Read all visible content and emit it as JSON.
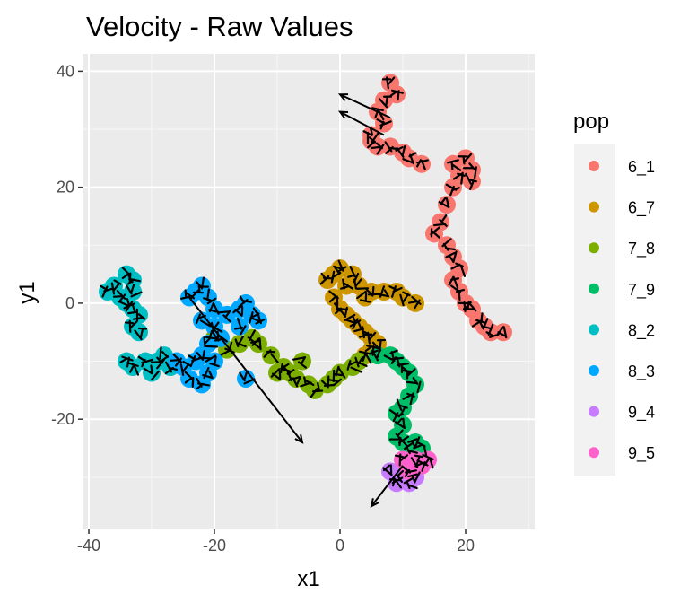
{
  "chart_data": {
    "type": "scatter",
    "title": "Velocity - Raw Values",
    "xlabel": "x1",
    "ylabel": "y1",
    "xlim": [
      -41,
      31
    ],
    "ylim": [
      -39,
      43
    ],
    "xticks": [
      -40,
      -20,
      0,
      20
    ],
    "yticks": [
      -20,
      0,
      20,
      40
    ],
    "grid": true,
    "background": "#EBEBEB",
    "legend": {
      "title": "pop",
      "position": "right",
      "entries": [
        {
          "label": "6_1",
          "color": "#F8766D"
        },
        {
          "label": "6_7",
          "color": "#CD9600"
        },
        {
          "label": "7_8",
          "color": "#7CAE00"
        },
        {
          "label": "7_9",
          "color": "#00BE67"
        },
        {
          "label": "8_2",
          "color": "#00BFC4"
        },
        {
          "label": "8_3",
          "color": "#00A9FF"
        },
        {
          "label": "9_4",
          "color": "#C77CFF"
        },
        {
          "label": "9_5",
          "color": "#FF61CC"
        }
      ]
    },
    "series": [
      {
        "name": "6_1",
        "color": "#F8766D",
        "points": [
          [
            8,
            38
          ],
          [
            7,
            35
          ],
          [
            9,
            36
          ],
          [
            6,
            33
          ],
          [
            7,
            31
          ],
          [
            5,
            29
          ],
          [
            6,
            27
          ],
          [
            5,
            28
          ],
          [
            8,
            27
          ],
          [
            10,
            26
          ],
          [
            11,
            25
          ],
          [
            13,
            24
          ],
          [
            18,
            24
          ],
          [
            20,
            25
          ],
          [
            21,
            23
          ],
          [
            19,
            22
          ],
          [
            21,
            21
          ],
          [
            18,
            20
          ],
          [
            17,
            17
          ],
          [
            16,
            14
          ],
          [
            15,
            12
          ],
          [
            17,
            10
          ],
          [
            18,
            8
          ],
          [
            19,
            6
          ],
          [
            18,
            4
          ],
          [
            19,
            2
          ],
          [
            20,
            0
          ],
          [
            21,
            -1
          ],
          [
            22,
            -3
          ],
          [
            23,
            -4
          ],
          [
            24,
            -5
          ],
          [
            26,
            -5
          ]
        ]
      },
      {
        "name": "6_7",
        "color": "#CD9600",
        "points": [
          [
            -2,
            4
          ],
          [
            -1,
            5
          ],
          [
            0,
            6
          ],
          [
            2,
            5
          ],
          [
            1,
            3
          ],
          [
            3,
            3
          ],
          [
            5,
            2
          ],
          [
            4,
            1
          ],
          [
            7,
            2
          ],
          [
            9,
            2
          ],
          [
            10,
            1
          ],
          [
            12,
            0
          ],
          [
            -1,
            1
          ],
          [
            0,
            -1
          ],
          [
            1,
            -2
          ],
          [
            2,
            -3
          ],
          [
            3,
            -4
          ],
          [
            4,
            -5
          ],
          [
            5,
            -6
          ],
          [
            6,
            -7
          ],
          [
            5,
            -8
          ],
          [
            4,
            -9
          ]
        ]
      },
      {
        "name": "7_8",
        "color": "#7CAE00",
        "points": [
          [
            -20,
            -6
          ],
          [
            -18,
            -8
          ],
          [
            -16,
            -7
          ],
          [
            -14,
            -6
          ],
          [
            -13,
            -7
          ],
          [
            -11,
            -9
          ],
          [
            -9,
            -11
          ],
          [
            -8,
            -12
          ],
          [
            -7,
            -13
          ],
          [
            -5,
            -14
          ],
          [
            -4,
            -15
          ],
          [
            -2,
            -14
          ],
          [
            -1,
            -13
          ],
          [
            0,
            -12
          ],
          [
            2,
            -11
          ],
          [
            3,
            -10
          ],
          [
            -6,
            -10
          ],
          [
            -10,
            -12
          ]
        ]
      },
      {
        "name": "7_9",
        "color": "#00BE67",
        "points": [
          [
            6,
            -9
          ],
          [
            8,
            -9
          ],
          [
            9,
            -10
          ],
          [
            10,
            -11
          ],
          [
            11,
            -12
          ],
          [
            12,
            -14
          ],
          [
            11,
            -16
          ],
          [
            10,
            -18
          ],
          [
            9,
            -19
          ],
          [
            10,
            -21
          ],
          [
            9,
            -23
          ],
          [
            10,
            -24
          ],
          [
            11,
            -25
          ],
          [
            12,
            -24
          ],
          [
            13,
            -25
          ]
        ]
      },
      {
        "name": "8_2",
        "color": "#00BFC4",
        "points": [
          [
            -37,
            2
          ],
          [
            -36,
            3
          ],
          [
            -35,
            1
          ],
          [
            -34,
            5
          ],
          [
            -33,
            4
          ],
          [
            -33,
            2
          ],
          [
            -34,
            0
          ],
          [
            -33,
            -1
          ],
          [
            -32,
            -2
          ],
          [
            -33,
            -4
          ],
          [
            -32,
            -5
          ],
          [
            -34,
            -10
          ],
          [
            -33,
            -11
          ],
          [
            -31,
            -10
          ],
          [
            -30,
            -12
          ],
          [
            -29,
            -10
          ],
          [
            -28,
            -9
          ],
          [
            -27,
            -11
          ]
        ]
      },
      {
        "name": "8_3",
        "color": "#00A9FF",
        "points": [
          [
            -24,
            1
          ],
          [
            -23,
            2
          ],
          [
            -22,
            3
          ],
          [
            -21,
            1
          ],
          [
            -20,
            -1
          ],
          [
            -22,
            -3
          ],
          [
            -20,
            -4
          ],
          [
            -18,
            -2
          ],
          [
            -16,
            -1
          ],
          [
            -15,
            0
          ],
          [
            -14,
            -2
          ],
          [
            -13,
            -3
          ],
          [
            -16,
            -4
          ],
          [
            -19,
            -6
          ],
          [
            -21,
            -7
          ],
          [
            -22,
            -9
          ],
          [
            -20,
            -10
          ],
          [
            -21,
            -12
          ],
          [
            -23,
            -10
          ],
          [
            -25,
            -11
          ],
          [
            -26,
            -10
          ],
          [
            -24,
            -13
          ],
          [
            -22,
            -14
          ],
          [
            -15,
            -13
          ]
        ]
      },
      {
        "name": "9_4",
        "color": "#C77CFF",
        "points": [
          [
            8,
            -29
          ],
          [
            9,
            -30
          ],
          [
            9,
            -31
          ],
          [
            11,
            -31
          ],
          [
            12,
            -30
          ]
        ]
      },
      {
        "name": "9_5",
        "color": "#FF61CC",
        "points": [
          [
            10,
            -27
          ],
          [
            12,
            -27
          ],
          [
            13,
            -28
          ],
          [
            14,
            -27
          ],
          [
            11,
            -29
          ]
        ]
      }
    ],
    "arrows": [
      [
        [
          8,
          32
        ],
        [
          0,
          36
        ]
      ],
      [
        [
          7,
          29
        ],
        [
          0,
          33
        ]
      ],
      [
        [
          -24,
          1
        ],
        [
          -6,
          -24
        ]
      ],
      [
        [
          10,
          -28
        ],
        [
          5,
          -35
        ]
      ]
    ]
  }
}
